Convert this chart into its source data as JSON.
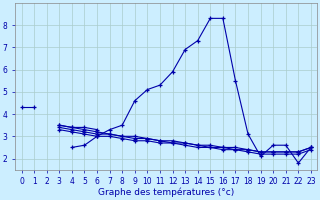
{
  "title": "Graphe des températures (°c)",
  "background_color": "#cceeff",
  "grid_color": "#aacccc",
  "line_color": "#0000aa",
  "hours": [
    0,
    1,
    2,
    3,
    4,
    5,
    6,
    7,
    8,
    9,
    10,
    11,
    12,
    13,
    14,
    15,
    16,
    17,
    18,
    19,
    20,
    21,
    22,
    23
  ],
  "temp_main": [
    4.3,
    4.3,
    null,
    null,
    null,
    null,
    3.0,
    3.3,
    3.5,
    4.6,
    5.1,
    5.3,
    5.9,
    6.9,
    7.3,
    8.3,
    8.3,
    5.5,
    3.1,
    2.1,
    2.6,
    2.6,
    1.8,
    2.5
  ],
  "temp_dip": [
    null,
    null,
    null,
    3.5,
    3.4,
    3.4,
    3.3,
    null,
    null,
    null,
    null,
    null,
    null,
    null,
    null,
    null,
    null,
    null,
    null,
    null,
    null,
    null,
    null,
    null
  ],
  "temp_dip2": [
    null,
    null,
    null,
    null,
    2.5,
    2.6,
    3.0,
    null,
    null,
    null,
    null,
    null,
    null,
    null,
    null,
    null,
    null,
    null,
    null,
    null,
    null,
    null,
    null,
    null
  ],
  "temp_flat1": [
    null,
    null,
    null,
    3.5,
    3.4,
    3.3,
    3.2,
    3.1,
    3.0,
    3.0,
    2.9,
    2.8,
    2.8,
    2.7,
    2.6,
    2.6,
    2.5,
    2.5,
    2.4,
    2.3,
    2.3,
    2.3,
    2.3,
    2.5
  ],
  "temp_flat2": [
    null,
    null,
    null,
    3.4,
    3.3,
    3.2,
    3.1,
    3.1,
    3.0,
    2.9,
    2.9,
    2.8,
    2.7,
    2.7,
    2.6,
    2.5,
    2.5,
    2.4,
    2.4,
    2.3,
    2.3,
    2.3,
    2.3,
    2.5
  ],
  "temp_flat3": [
    null,
    null,
    null,
    3.3,
    3.2,
    3.1,
    3.0,
    3.0,
    2.9,
    2.8,
    2.8,
    2.7,
    2.7,
    2.6,
    2.5,
    2.5,
    2.4,
    2.4,
    2.3,
    2.2,
    2.2,
    2.2,
    2.2,
    2.4
  ],
  "ylim": [
    1.5,
    9.0
  ],
  "yticks": [
    2,
    3,
    4,
    5,
    6,
    7,
    8
  ],
  "xlim": [
    -0.5,
    23.5
  ],
  "tick_fontsize": 5.5,
  "xlabel_fontsize": 6.5
}
